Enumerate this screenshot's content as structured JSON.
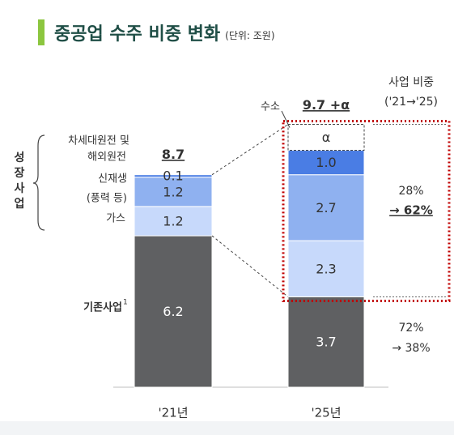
{
  "header": {
    "title": "중공업 수주 비중 변화",
    "unit": "(단위: 조원)"
  },
  "chart_data": {
    "type": "bar",
    "stacked": true,
    "categories": [
      "'21년",
      "'25년"
    ],
    "series": [
      {
        "name": "기존사업",
        "footnote_mark": "1",
        "values": [
          6.2,
          3.7
        ],
        "labels": [
          "6.2",
          "3.7"
        ],
        "color": "#5f6062"
      },
      {
        "name": "가스",
        "values": [
          1.2,
          2.3
        ],
        "labels": [
          "1.2",
          "2.3"
        ],
        "color": "#c7d9fb"
      },
      {
        "name": "신재생 (풍력 등)",
        "values": [
          1.2,
          2.7
        ],
        "labels": [
          "1.2",
          "2.7"
        ],
        "color": "#8fb1f0"
      },
      {
        "name": "차세대원전 및 해외원전",
        "values": [
          0.1,
          1.0
        ],
        "labels": [
          "0.1",
          "1.0"
        ],
        "color": "#4a7de4"
      },
      {
        "name": "수소",
        "values": [
          0,
          null
        ],
        "labels": [
          "",
          "α"
        ],
        "color": "#ffffff"
      }
    ],
    "totals": [
      "8.7",
      "9.7 +α"
    ],
    "group_label": "성장사업",
    "series_labels": {
      "next_gen_nuclear": [
        "차세대원전 및",
        "해외원전"
      ],
      "renewables": [
        "신재생",
        "(풍력 등)"
      ],
      "gas": "가스",
      "existing": "기존사업",
      "existing_mark": "1",
      "hydrogen": "수소"
    },
    "share_header": [
      "사업 비중",
      "('21→'25)"
    ],
    "shares": {
      "growth": {
        "from": "28%",
        "to": "62%"
      },
      "existing": {
        "from": "72%",
        "to": "38%"
      }
    },
    "colors": {
      "existing": "#5f6062",
      "gas": "#c7d9fb",
      "renewables": "#8fb1f0",
      "nuclear": "#4a7de4",
      "highlight": "#c00000",
      "accent": "#8cc63f"
    }
  }
}
